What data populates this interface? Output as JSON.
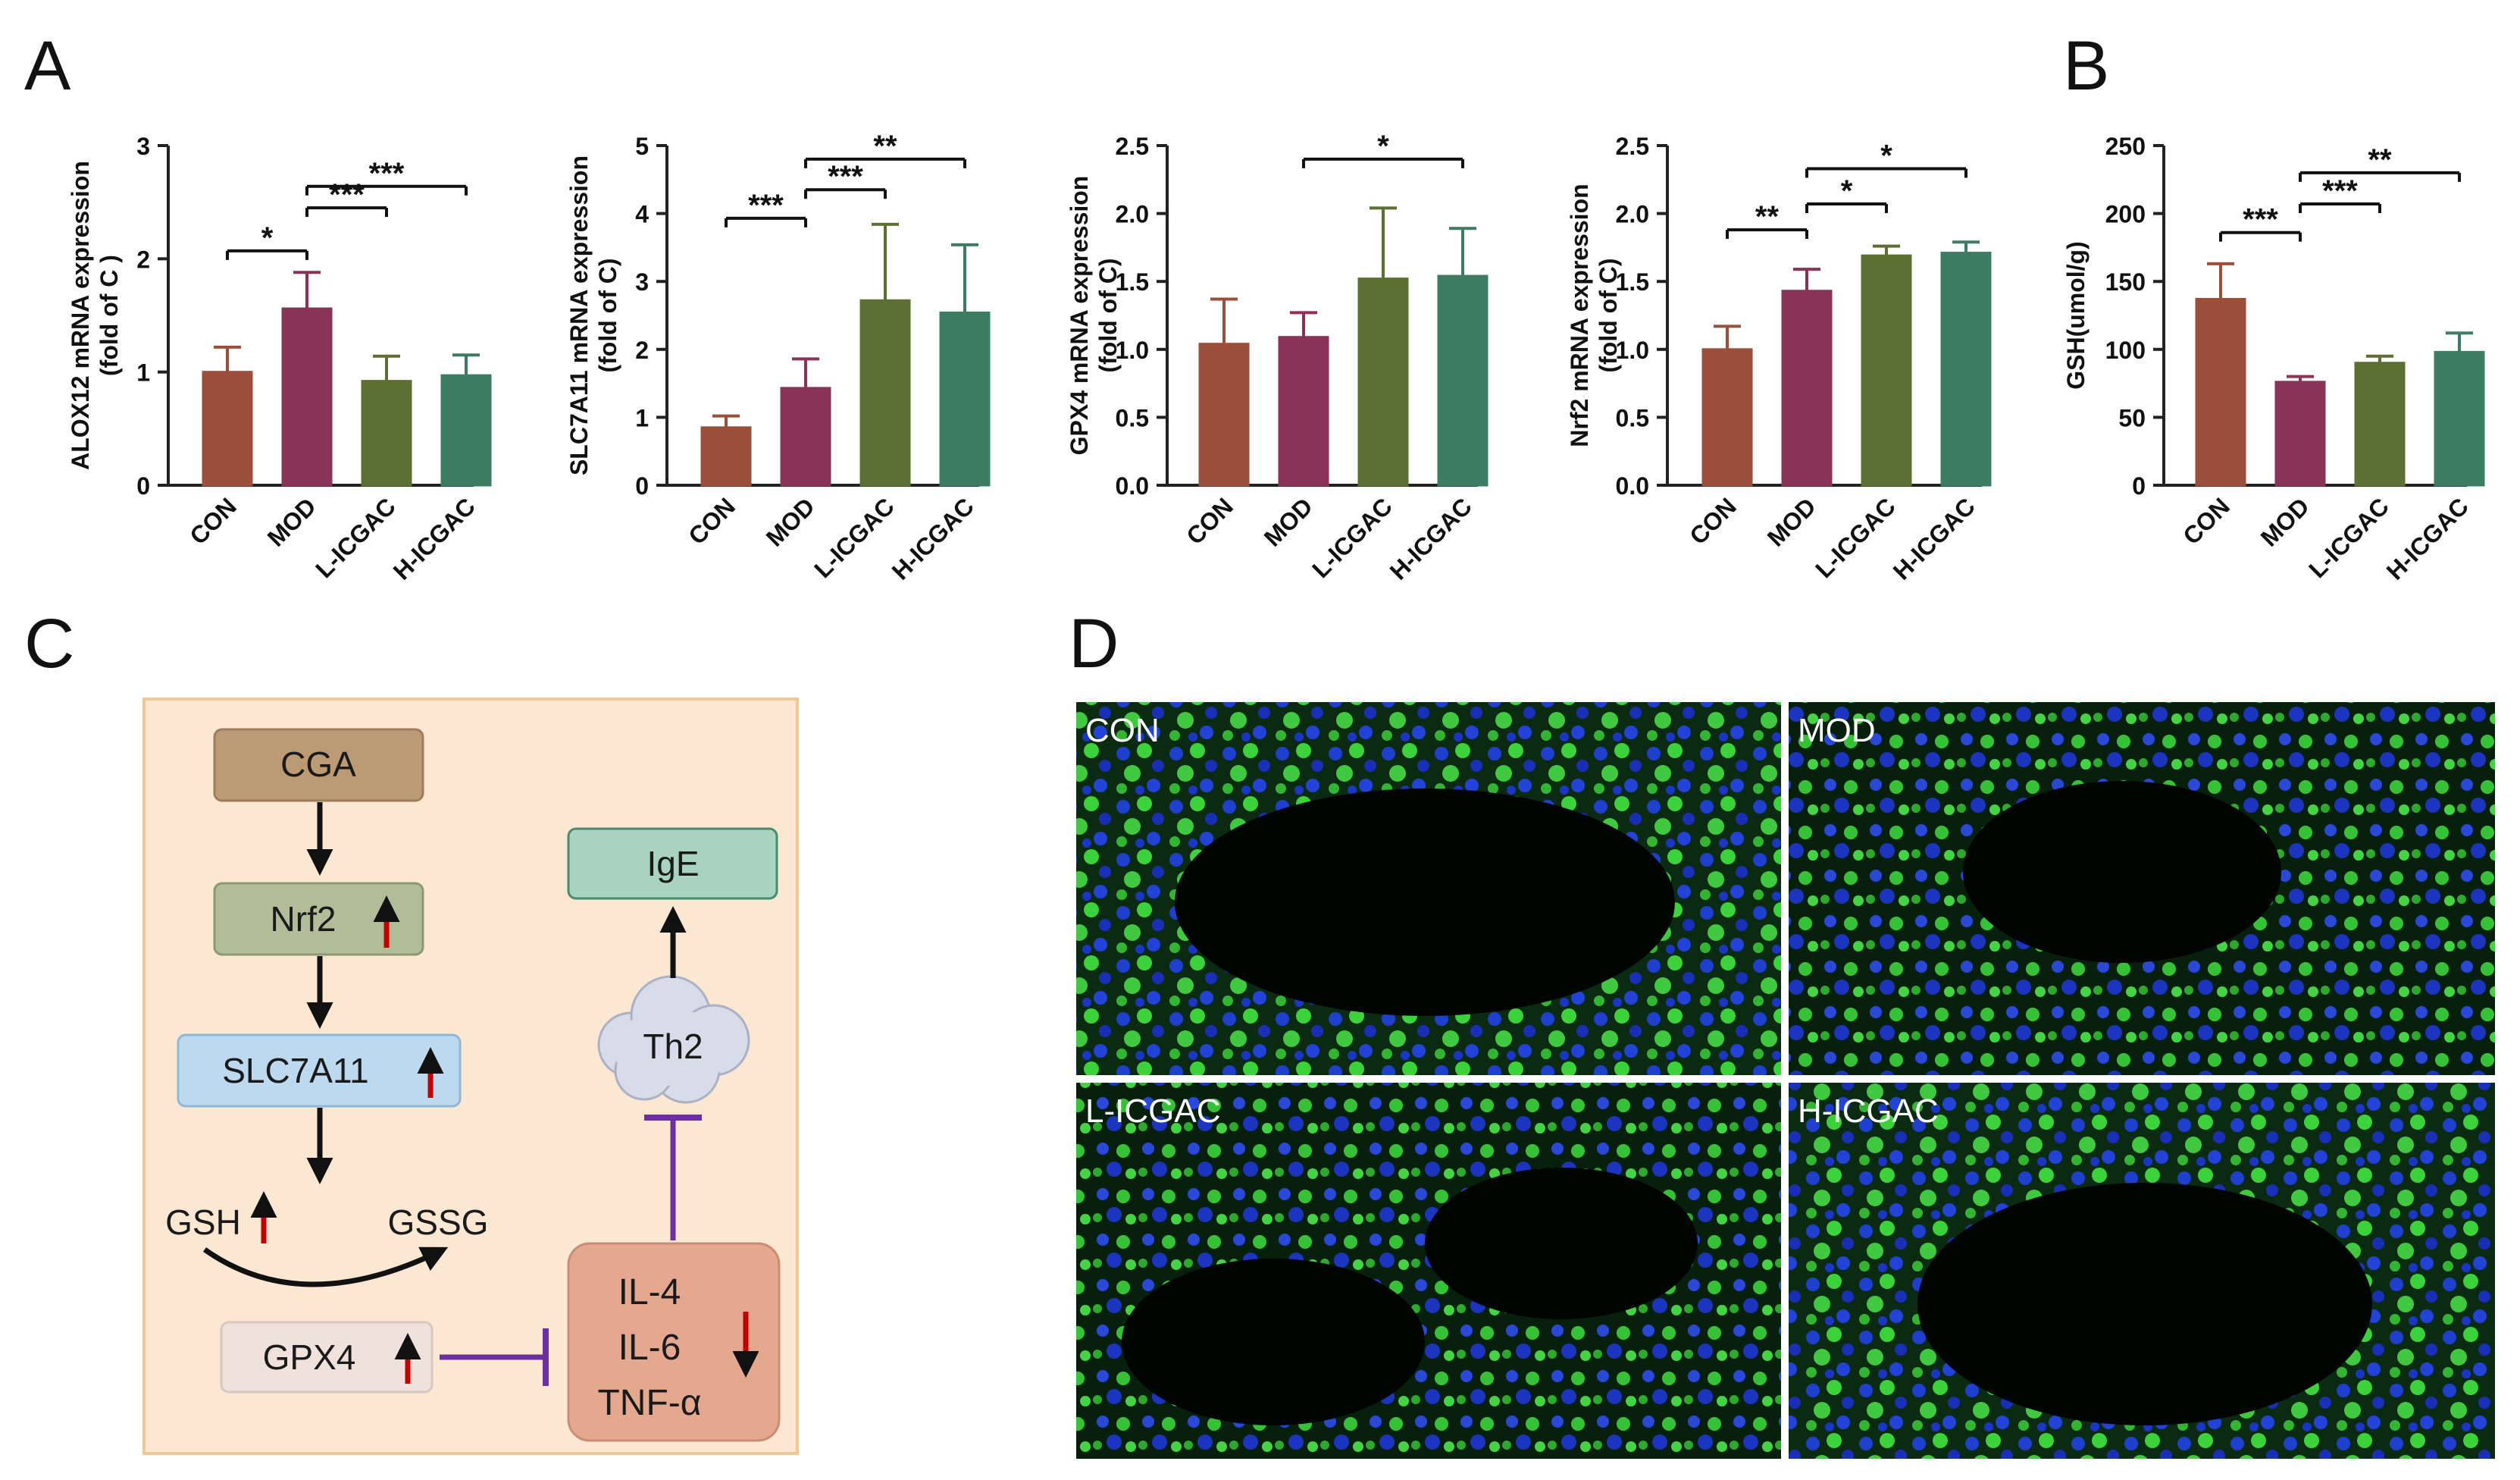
{
  "panel_labels": {
    "a": "A",
    "b": "B",
    "c": "C",
    "d": "D"
  },
  "colors": {
    "CON": "#9b4f3a",
    "MOD": "#8a3358",
    "L-ICGAC": "#5c7033",
    "H-ICGAC": "#3e7b63",
    "axis": "#222222",
    "inhibit": "#6b2fa0",
    "up_arrow": "#c00000"
  },
  "chart_data": [
    {
      "type": "bar",
      "ylabel": "ALOX12 mRNA expression",
      "ylabel2": "(fold of C )",
      "categories": [
        "CON",
        "MOD",
        "L-ICGAC",
        "H-ICGAC"
      ],
      "values": [
        1.0,
        1.56,
        0.92,
        0.97
      ],
      "errors": [
        0.22,
        0.32,
        0.22,
        0.18
      ],
      "ylim": [
        0,
        3
      ],
      "ticks": [
        "0",
        "1",
        "2",
        "3"
      ],
      "tick_values": [
        0,
        1,
        2,
        3
      ],
      "significance": [
        {
          "from": 0,
          "to": 1,
          "label": "*",
          "y": 2.07
        },
        {
          "from": 1,
          "to": 2,
          "label": "***",
          "y": 2.45
        },
        {
          "from": 1,
          "to": 3,
          "label": "***",
          "y": 2.64
        }
      ]
    },
    {
      "type": "bar",
      "ylabel": "SLC7A11 mRNA expression",
      "ylabel2": "(fold of C)",
      "categories": [
        "CON",
        "MOD",
        "L-ICGAC",
        "H-ICGAC"
      ],
      "values": [
        0.85,
        1.43,
        2.72,
        2.54
      ],
      "errors": [
        0.17,
        0.43,
        1.12,
        1.0
      ],
      "ylim": [
        0,
        5
      ],
      "ticks": [
        "0",
        "1",
        "2",
        "3",
        "4",
        "5"
      ],
      "tick_values": [
        0,
        1,
        2,
        3,
        4,
        5
      ],
      "significance": [
        {
          "from": 0,
          "to": 1,
          "label": "***",
          "y": 3.93
        },
        {
          "from": 1,
          "to": 2,
          "label": "***",
          "y": 4.35
        },
        {
          "from": 1,
          "to": 3,
          "label": "**",
          "y": 4.8
        }
      ]
    },
    {
      "type": "bar",
      "ylabel": "GPX4 mRNA expression",
      "ylabel2": "(fold of C)",
      "categories": [
        "CON",
        "MOD",
        "L-ICGAC",
        "H-ICGAC"
      ],
      "values": [
        1.04,
        1.09,
        1.52,
        1.54
      ],
      "errors": [
        0.33,
        0.18,
        0.52,
        0.35
      ],
      "ylim": [
        0,
        2.5
      ],
      "ticks": [
        "0.0",
        "0.5",
        "1.0",
        "1.5",
        "2.0",
        "2.5"
      ],
      "tick_values": [
        0,
        0.5,
        1,
        1.5,
        2,
        2.5
      ],
      "significance": [
        {
          "from": 1,
          "to": 3,
          "label": "*",
          "y": 2.4
        }
      ]
    },
    {
      "type": "bar",
      "ylabel": "Nrf2 mRNA expression",
      "ylabel2": "(fold of C)",
      "categories": [
        "CON",
        "MOD",
        "L-ICGAC",
        "H-ICGAC"
      ],
      "values": [
        1.0,
        1.43,
        1.69,
        1.71
      ],
      "errors": [
        0.17,
        0.16,
        0.07,
        0.08
      ],
      "ylim": [
        0,
        2.5
      ],
      "ticks": [
        "0.0",
        "0.5",
        "1.0",
        "1.5",
        "2.0",
        "2.5"
      ],
      "tick_values": [
        0,
        0.5,
        1,
        1.5,
        2,
        2.5
      ],
      "significance": [
        {
          "from": 0,
          "to": 1,
          "label": "**",
          "y": 1.88
        },
        {
          "from": 1,
          "to": 2,
          "label": "*",
          "y": 2.07
        },
        {
          "from": 1,
          "to": 3,
          "label": "*",
          "y": 2.33
        }
      ]
    },
    {
      "type": "bar",
      "ylabel": "GSH(umol/g)",
      "ylabel2": "",
      "categories": [
        "CON",
        "MOD",
        "L-ICGAC",
        "H-ICGAC"
      ],
      "values": [
        137,
        76,
        90,
        98
      ],
      "errors": [
        26,
        4,
        5,
        14
      ],
      "ylim": [
        0,
        250
      ],
      "ticks": [
        "0",
        "50",
        "100",
        "150",
        "200",
        "250"
      ],
      "tick_values": [
        0,
        50,
        100,
        150,
        200,
        250
      ],
      "significance": [
        {
          "from": 0,
          "to": 1,
          "label": "***",
          "y": 186
        },
        {
          "from": 1,
          "to": 2,
          "label": "***",
          "y": 207
        },
        {
          "from": 1,
          "to": 3,
          "label": "**",
          "y": 230
        }
      ]
    }
  ],
  "diagram": {
    "cga": "CGA",
    "nrf2": "Nrf2",
    "slc7a11": "SLC7A11",
    "gsh": "GSH",
    "gssg": "GSSG",
    "gpx4": "GPX4",
    "th2": "Th2",
    "ige": "IgE",
    "cytokines": [
      "IL-4",
      "IL-6",
      "TNF-α"
    ]
  },
  "micrographs": [
    {
      "label": "CON"
    },
    {
      "label": "MOD"
    },
    {
      "label": "L-ICGAC"
    },
    {
      "label": "H-ICGAC"
    }
  ]
}
